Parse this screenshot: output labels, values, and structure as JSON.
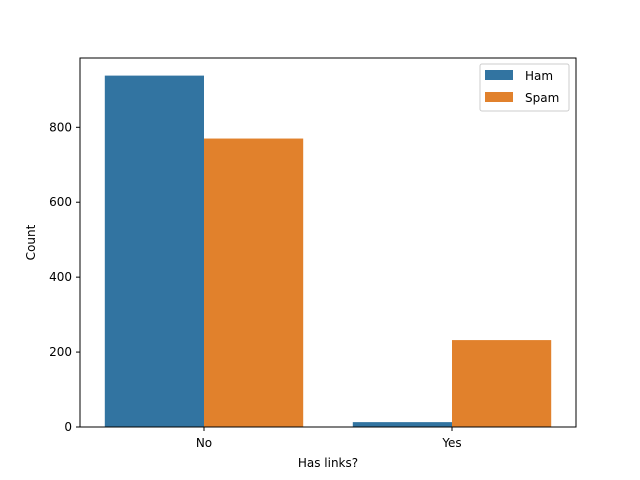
{
  "chart_data": {
    "type": "bar",
    "categories": [
      "No",
      "Yes"
    ],
    "series": [
      {
        "name": "Ham",
        "values": [
          938,
          13
        ],
        "color": "#3274a1"
      },
      {
        "name": "Spam",
        "values": [
          770,
          232
        ],
        "color": "#e1812c"
      }
    ],
    "xlabel": "Has links?",
    "ylabel": "Count",
    "ylim": [
      0,
      985
    ],
    "yticks": [
      0,
      200,
      400,
      600,
      800
    ],
    "grid": false,
    "legend_position": "top-right"
  }
}
